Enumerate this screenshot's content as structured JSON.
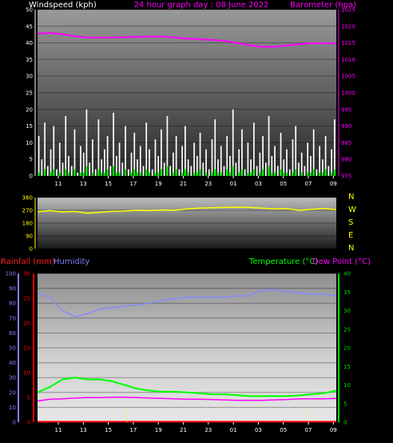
{
  "header": {
    "windspeed_label": "Windspeed (kph)",
    "title": "24 hour graph day : 08 June 2022",
    "barometer_label": "Barometer (hpa)",
    "rainfall_label": "Rainfall (mm)",
    "humidity_label": "Humidity",
    "temperature_label": "Temperature (°C)",
    "dewpoint_label": "Dew Point (°C)"
  },
  "colors": {
    "background": "#000000",
    "wind": "#ffffff",
    "gust": "#00ff00",
    "barometer": "#ff00ff",
    "direction": "#ffff00",
    "direction_letters": "#ffff00",
    "rain": "#ff0000",
    "humidity": "#8888ff",
    "temperature": "#00ff00",
    "dewpoint": "#ff00ff",
    "temp_axis": "#00dd00",
    "rain_axis": "#ff0000",
    "hum_axis": "#8080ff",
    "rain_marker": "#ffff00"
  },
  "direction_letters": [
    "N",
    "W",
    "S",
    "E",
    "N"
  ],
  "chart_data": [
    {
      "type": "area",
      "title": "24 hour graph day : 08 June 2022",
      "x_ticks": [
        "11",
        "13",
        "15",
        "17",
        "19",
        "21",
        "23",
        "01",
        "03",
        "05",
        "07",
        "09"
      ],
      "y_left": {
        "label": "Windspeed (kph)",
        "ylim": [
          0,
          50
        ],
        "ticks": [
          0,
          5,
          10,
          15,
          20,
          25,
          30,
          35,
          40,
          45,
          50
        ]
      },
      "y_right": {
        "label": "Barometer (hpa)",
        "ylim": [
          975,
          1025
        ],
        "ticks": [
          975,
          980,
          985,
          990,
          995,
          1000,
          1005,
          1010,
          1015,
          1020,
          1025
        ]
      },
      "series": [
        {
          "name": "Windspeed (kph)",
          "axis": "left",
          "style": "bars",
          "values": [
            12,
            5,
            16,
            3,
            8,
            15,
            2,
            10,
            4,
            18,
            6,
            3,
            14,
            1,
            9,
            7,
            20,
            4,
            11,
            2,
            17,
            5,
            8,
            12,
            3,
            19,
            6,
            10,
            4,
            15,
            2,
            7,
            13,
            5,
            9,
            3,
            16,
            8,
            2,
            11,
            6,
            14,
            4,
            18,
            3,
            7,
            12,
            2,
            9,
            15,
            5,
            3,
            10,
            6,
            13,
            4,
            8,
            2,
            11,
            17,
            5,
            9,
            3,
            12,
            6,
            20,
            4,
            8,
            14,
            2,
            10,
            5,
            16,
            3,
            7,
            12,
            4,
            18,
            6,
            9,
            3,
            13,
            5,
            8,
            2,
            11,
            15,
            4,
            7,
            3,
            10,
            6,
            14,
            2,
            9,
            5,
            12,
            3,
            8,
            17
          ]
        },
        {
          "name": "Wind gust",
          "axis": "left",
          "style": "bars",
          "values": [
            1,
            0,
            2,
            0,
            1,
            2,
            0,
            1,
            0,
            2,
            1,
            0,
            2,
            0,
            1,
            1,
            3,
            0,
            1,
            0,
            2,
            1,
            1,
            2,
            0,
            3,
            1,
            1,
            0,
            2,
            0,
            1,
            2,
            1,
            1,
            0,
            2,
            1,
            0,
            1,
            1,
            2,
            0,
            3,
            0,
            1,
            2,
            0,
            1,
            2,
            1,
            0,
            1,
            1,
            2,
            0,
            1,
            0,
            1,
            2,
            1,
            1,
            0,
            2,
            1,
            3,
            0,
            1,
            2,
            0,
            1,
            1,
            2,
            0,
            1,
            2,
            0,
            3,
            1,
            1,
            0,
            2,
            1,
            1,
            0,
            1,
            2,
            0,
            1,
            0,
            1,
            1,
            2,
            0,
            1,
            1,
            2,
            0,
            1,
            2
          ]
        },
        {
          "name": "Barometer (hpa)",
          "axis": "right",
          "style": "line",
          "x": [
            0,
            1,
            2,
            3,
            4,
            5,
            6,
            7,
            8,
            9,
            10,
            11,
            12,
            13,
            14,
            15,
            16,
            17,
            18,
            19,
            20,
            21,
            22,
            23,
            24
          ],
          "values": [
            1017.8,
            1018.0,
            1017.6,
            1017.0,
            1016.6,
            1016.6,
            1016.6,
            1016.7,
            1016.8,
            1016.9,
            1016.9,
            1016.6,
            1016.3,
            1016.1,
            1015.9,
            1015.6,
            1015.0,
            1014.3,
            1013.8,
            1013.8,
            1014.2,
            1014.6,
            1014.9,
            1014.9,
            1014.8
          ]
        }
      ]
    },
    {
      "type": "line",
      "y_ticks": [
        0,
        90,
        180,
        270,
        360
      ],
      "ylim": [
        0,
        360
      ],
      "series": [
        {
          "name": "Wind direction",
          "x": [
            0,
            1,
            2,
            3,
            4,
            5,
            6,
            7,
            8,
            9,
            10,
            11,
            12,
            13,
            14,
            15,
            16,
            17,
            18,
            19,
            20,
            21,
            22,
            23,
            24
          ],
          "values": [
            260,
            268,
            258,
            262,
            250,
            256,
            262,
            265,
            270,
            268,
            272,
            270,
            280,
            285,
            288,
            290,
            292,
            290,
            285,
            280,
            282,
            270,
            276,
            283,
            275
          ]
        }
      ]
    },
    {
      "type": "line",
      "x_ticks": [
        "11",
        "13",
        "15",
        "17",
        "19",
        "21",
        "23",
        "01",
        "03",
        "05",
        "07",
        "09"
      ],
      "y_rain": {
        "label": "Rainfall (mm)",
        "ylim": [
          0,
          30
        ],
        "ticks": [
          0,
          5,
          10,
          15,
          20,
          25,
          30
        ]
      },
      "y_humidity": {
        "label": "Humidity",
        "ylim": [
          0,
          100
        ],
        "ticks": [
          0,
          10,
          20,
          30,
          40,
          50,
          60,
          70,
          80,
          90,
          100
        ]
      },
      "y_temp": {
        "label": "Temperature (°C)",
        "ylim": [
          0,
          40
        ],
        "ticks": [
          0,
          5,
          10,
          15,
          20,
          25,
          30,
          35,
          40
        ]
      },
      "series": [
        {
          "name": "Humidity",
          "axis": "humidity",
          "x": [
            0,
            1,
            2,
            3,
            4,
            5,
            6,
            7,
            8,
            9,
            10,
            11,
            12,
            13,
            14,
            15,
            16,
            17,
            18,
            19,
            20,
            21,
            22,
            23,
            24
          ],
          "values": [
            87,
            84,
            75,
            71,
            73,
            76,
            77,
            78,
            79,
            80,
            82,
            83,
            84,
            84,
            84,
            84,
            85,
            85,
            89,
            89,
            88,
            87,
            86,
            86,
            85
          ]
        },
        {
          "name": "Temperature (°C)",
          "axis": "temp",
          "x": [
            0,
            1,
            2,
            3,
            4,
            5,
            6,
            7,
            8,
            9,
            10,
            11,
            12,
            13,
            14,
            15,
            16,
            17,
            18,
            19,
            20,
            21,
            22,
            23,
            24
          ],
          "values": [
            8,
            9.5,
            11.5,
            12,
            11.5,
            11.5,
            11,
            10,
            9,
            8.5,
            8.2,
            8.2,
            8,
            7.8,
            7.5,
            7.5,
            7.3,
            7,
            7,
            7,
            7,
            7.2,
            7.5,
            7.8,
            8.5
          ]
        },
        {
          "name": "Dew Point (°C)",
          "axis": "temp",
          "x": [
            0,
            1,
            2,
            3,
            4,
            5,
            6,
            7,
            8,
            9,
            10,
            11,
            12,
            13,
            14,
            15,
            16,
            17,
            18,
            19,
            20,
            21,
            22,
            23,
            24
          ],
          "values": [
            5.7,
            6.2,
            6.3,
            6.5,
            6.6,
            6.6,
            6.7,
            6.7,
            6.6,
            6.5,
            6.4,
            6.3,
            6.2,
            6.2,
            6.1,
            6.0,
            5.9,
            5.9,
            5.9,
            6.0,
            6.1,
            6.3,
            6.3,
            6.3,
            6.4
          ]
        },
        {
          "name": "Rainfall (mm)",
          "axis": "rain",
          "x": [
            0,
            3,
            6,
            9,
            12,
            15,
            18,
            21,
            24
          ],
          "values": [
            0.1,
            0.1,
            0.1,
            0.1,
            0.1,
            0.1,
            0.1,
            0.1,
            0.1
          ]
        }
      ]
    }
  ]
}
